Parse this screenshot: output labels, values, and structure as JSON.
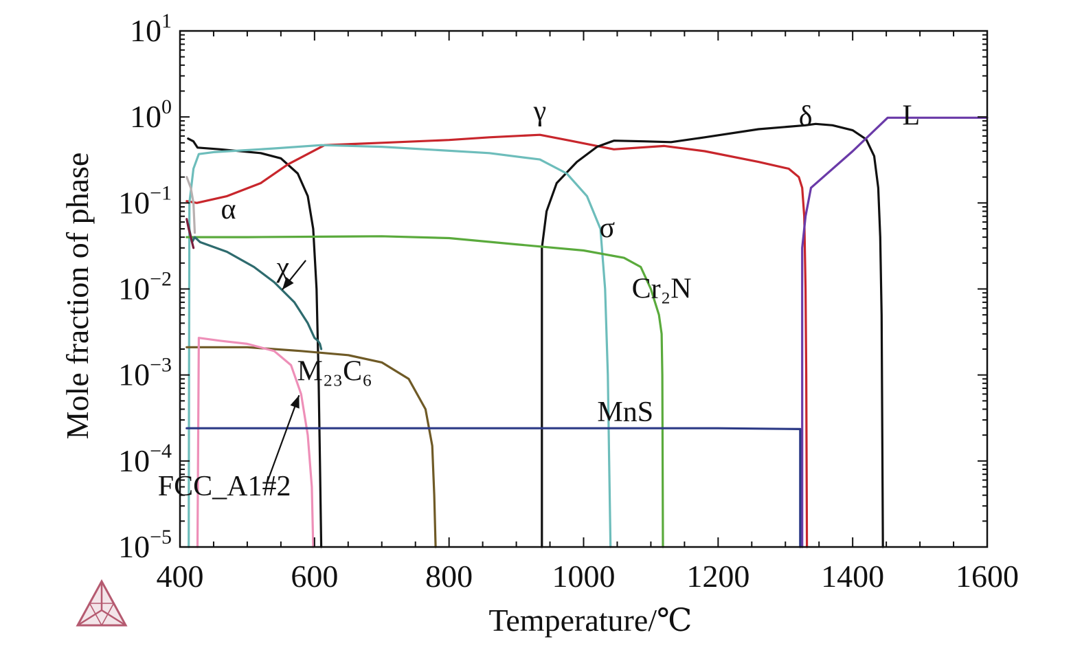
{
  "chart_data": {
    "type": "line",
    "title": "",
    "xlabel": "Temperature/℃",
    "ylabel": "Mole fraction of phase",
    "x_scale": "linear",
    "y_scale": "log",
    "xlim": [
      400,
      1600
    ],
    "ylim": [
      1e-05,
      10
    ],
    "x_ticks": [
      400,
      600,
      800,
      1000,
      1200,
      1400,
      1600
    ],
    "y_ticks": [
      {
        "value": 10,
        "base": "10",
        "exp": "1"
      },
      {
        "value": 1,
        "base": "10",
        "exp": "0"
      },
      {
        "value": 0.1,
        "base": "10",
        "exp": "−1"
      },
      {
        "value": 0.01,
        "base": "10",
        "exp": "−2"
      },
      {
        "value": 0.001,
        "base": "10",
        "exp": "−3"
      },
      {
        "value": 0.0001,
        "base": "10",
        "exp": "−4"
      },
      {
        "value": 1e-05,
        "base": "10",
        "exp": "−5"
      }
    ],
    "grid": false,
    "legend": "none",
    "series": [
      {
        "name": "α",
        "color": "#111111",
        "label_at": [
          472,
          0.085
        ],
        "points": [
          [
            412,
            0.56
          ],
          [
            420,
            0.52
          ],
          [
            426,
            0.44
          ],
          [
            460,
            0.42
          ],
          [
            520,
            0.38
          ],
          [
            550,
            0.33
          ],
          [
            575,
            0.22
          ],
          [
            590,
            0.12
          ],
          [
            598,
            0.05
          ],
          [
            603,
            0.01
          ],
          [
            606,
            0.001
          ],
          [
            608,
            0.0001
          ],
          [
            610,
            1e-05
          ]
        ]
      },
      {
        "name": "γ",
        "color": "#c8262c",
        "label_at": [
          935,
          1.18
        ],
        "points": [
          [
            410,
            0.105
          ],
          [
            425,
            0.1
          ],
          [
            470,
            0.12
          ],
          [
            520,
            0.17
          ],
          [
            560,
            0.28
          ],
          [
            615,
            0.47
          ],
          [
            700,
            0.5
          ],
          [
            800,
            0.54
          ],
          [
            860,
            0.58
          ],
          [
            935,
            0.62
          ],
          [
            980,
            0.53
          ],
          [
            1045,
            0.42
          ],
          [
            1120,
            0.46
          ],
          [
            1180,
            0.4
          ],
          [
            1260,
            0.3
          ],
          [
            1305,
            0.25
          ],
          [
            1320,
            0.2
          ],
          [
            1325,
            0.15
          ],
          [
            1328,
            0.07
          ],
          [
            1330,
            0.01
          ],
          [
            1331,
            0.001
          ],
          [
            1332,
            1e-05
          ]
        ]
      },
      {
        "name": "δ",
        "color": "#111111",
        "label_at": [
          1330,
          1.02
        ],
        "points": [
          [
            938,
            1e-05
          ],
          [
            938,
            0.03
          ],
          [
            945,
            0.08
          ],
          [
            960,
            0.17
          ],
          [
            990,
            0.3
          ],
          [
            1020,
            0.45
          ],
          [
            1045,
            0.53
          ],
          [
            1090,
            0.52
          ],
          [
            1130,
            0.51
          ],
          [
            1180,
            0.58
          ],
          [
            1260,
            0.72
          ],
          [
            1330,
            0.8
          ],
          [
            1345,
            0.83
          ],
          [
            1370,
            0.8
          ],
          [
            1400,
            0.7
          ],
          [
            1420,
            0.55
          ],
          [
            1432,
            0.35
          ],
          [
            1438,
            0.15
          ],
          [
            1441,
            0.04
          ],
          [
            1443,
            0.005
          ],
          [
            1445,
            1e-05
          ]
        ]
      },
      {
        "name": "L",
        "color": "#6a3aa8",
        "label_at": [
          1487,
          1.05
        ],
        "points": [
          [
            1325,
            1e-05
          ],
          [
            1325,
            0.03
          ],
          [
            1330,
            0.07
          ],
          [
            1338,
            0.15
          ],
          [
            1400,
            0.4
          ],
          [
            1452,
            0.98
          ],
          [
            1600,
            0.98
          ]
        ]
      },
      {
        "name": "σ",
        "color": "#6dbdbb",
        "label_at": [
          1035,
          0.052
        ],
        "points": [
          [
            413,
            1e-05
          ],
          [
            414,
            0.1
          ],
          [
            420,
            0.25
          ],
          [
            428,
            0.37
          ],
          [
            450,
            0.39
          ],
          [
            540,
            0.43
          ],
          [
            610,
            0.47
          ],
          [
            700,
            0.45
          ],
          [
            860,
            0.38
          ],
          [
            935,
            0.32
          ],
          [
            975,
            0.22
          ],
          [
            1005,
            0.12
          ],
          [
            1025,
            0.05
          ],
          [
            1032,
            0.01
          ],
          [
            1036,
            0.001
          ],
          [
            1038,
            0.0001
          ],
          [
            1040,
            1e-05
          ]
        ]
      },
      {
        "name": "Cr₂N",
        "color": "#5aaa3c",
        "label_at": [
          1116,
          0.0102
        ],
        "points": [
          [
            410,
            0.04
          ],
          [
            500,
            0.04
          ],
          [
            700,
            0.041
          ],
          [
            800,
            0.039
          ],
          [
            900,
            0.033
          ],
          [
            1000,
            0.028
          ],
          [
            1060,
            0.023
          ],
          [
            1085,
            0.018
          ],
          [
            1100,
            0.01
          ],
          [
            1112,
            0.005
          ],
          [
            1116,
            0.003
          ],
          [
            1117,
            0.001
          ],
          [
            1118,
            1e-05
          ]
        ]
      },
      {
        "name": "χ",
        "color": "#2e6b6e",
        "label_at": [
          553,
          0.018
        ],
        "points": [
          [
            412,
            0.057
          ],
          [
            418,
            0.035
          ],
          [
            422,
            0.04
          ],
          [
            430,
            0.035
          ],
          [
            470,
            0.027
          ],
          [
            510,
            0.018
          ],
          [
            540,
            0.012
          ],
          [
            570,
            0.007
          ],
          [
            590,
            0.004
          ],
          [
            600,
            0.0027
          ],
          [
            605,
            0.0025
          ],
          [
            608,
            0.0023
          ],
          [
            610,
            0.002
          ]
        ]
      },
      {
        "name": "M₂₃C₆",
        "color": "#6f5a26",
        "label_at": [
          630,
          0.00112
        ],
        "points": [
          [
            410,
            0.0021
          ],
          [
            500,
            0.0021
          ],
          [
            580,
            0.0019
          ],
          [
            650,
            0.0017
          ],
          [
            700,
            0.0014
          ],
          [
            740,
            0.0009
          ],
          [
            765,
            0.0004
          ],
          [
            775,
            0.00015
          ],
          [
            778,
            4e-05
          ],
          [
            780,
            1e-05
          ]
        ]
      },
      {
        "name": "FCC_A1#2",
        "color": "#ee8fb8",
        "label_at": [
          466,
          5.15e-05
        ],
        "points": [
          [
            426,
            1e-05
          ],
          [
            428,
            0.0027
          ],
          [
            460,
            0.0025
          ],
          [
            500,
            0.0023
          ],
          [
            540,
            0.0019
          ],
          [
            565,
            0.0013
          ],
          [
            580,
            0.0006
          ],
          [
            590,
            0.0002
          ],
          [
            596,
            5e-05
          ],
          [
            598,
            1e-05
          ]
        ]
      },
      {
        "name": "MnS",
        "color": "#2c3a86",
        "label_at": [
          1062,
          0.000375
        ],
        "points": [
          [
            410,
            0.00024
          ],
          [
            1200,
            0.00024
          ],
          [
            1322,
            0.000235
          ],
          [
            1322,
            1e-05
          ]
        ]
      },
      {
        "name": "",
        "color": "#b8b0b0",
        "points": [
          [
            410,
            0.2
          ],
          [
            416,
            0.15
          ],
          [
            420,
            0.1
          ],
          [
            422,
            0.045
          ]
        ]
      },
      {
        "name": "",
        "color": "#7a1e3c",
        "points": [
          [
            410,
            0.065
          ],
          [
            413,
            0.05
          ],
          [
            416,
            0.04
          ],
          [
            420,
            0.03
          ]
        ]
      }
    ],
    "annotations": [
      {
        "target": "χ",
        "from": [
          587,
          0.0215
        ],
        "to": [
          552,
          0.0098
        ]
      },
      {
        "target": "FCC_A1#2",
        "from": [
          530,
          5.75e-05
        ],
        "to": [
          577,
          0.00058
        ]
      }
    ]
  },
  "logo": {
    "name": "thermo-calc-logo",
    "color": "#b55a70"
  }
}
